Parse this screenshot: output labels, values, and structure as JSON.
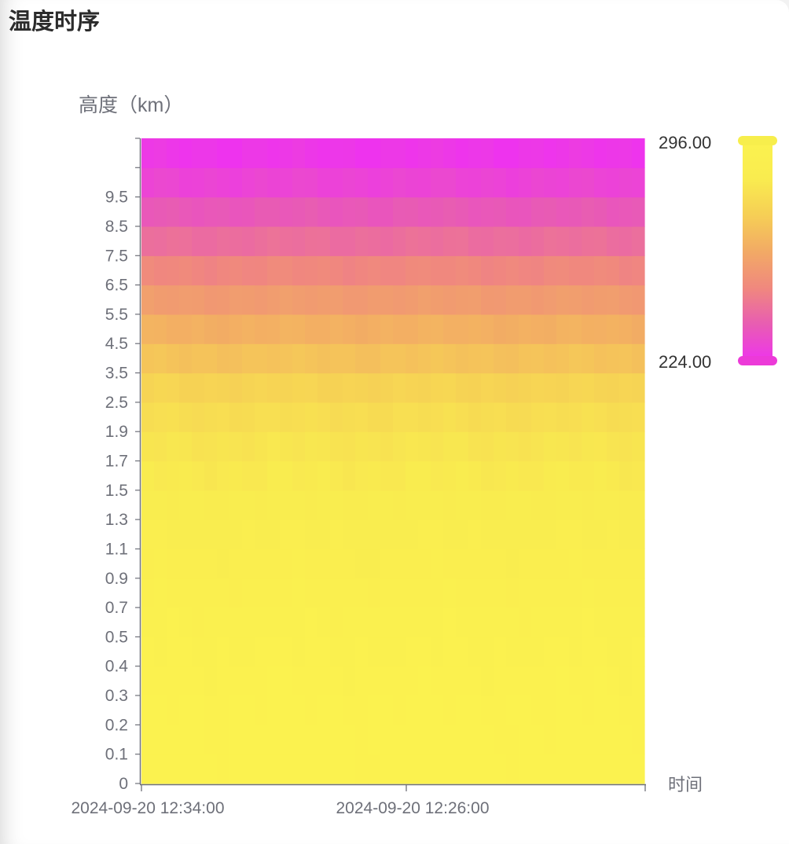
{
  "page": {
    "title": "温度时序"
  },
  "chart_data": {
    "type": "heatmap",
    "title": "",
    "xlabel": "时间",
    "ylabel": "高度（km）",
    "x_ticks": [
      "2024-09-20 12:34:00",
      "2024-09-20 12:26:00"
    ],
    "y_categories": [
      "0",
      "0.1",
      "0.2",
      "0.3",
      "0.4",
      "0.5",
      "0.7",
      "0.9",
      "1.1",
      "1.3",
      "1.5",
      "1.7",
      "1.9",
      "2.5",
      "3.5",
      "4.5",
      "5.5",
      "6.5",
      "7.5",
      "8.5",
      "9.5"
    ],
    "approx_values_by_height": [
      296,
      295.5,
      295,
      294,
      293,
      292,
      290,
      288,
      286.5,
      285,
      283,
      281,
      278,
      274,
      268,
      262,
      255,
      248,
      241,
      235,
      229
    ],
    "visual_map": {
      "min": 224,
      "max": 296,
      "min_label": "224.00",
      "max_label": "296.00",
      "colors": [
        "#ee33ee",
        "#e85cb3",
        "#f0887e",
        "#f2aa65",
        "#f6cf55",
        "#f9ec4f",
        "#fbf24f"
      ]
    },
    "grid": false,
    "legend": "right"
  }
}
